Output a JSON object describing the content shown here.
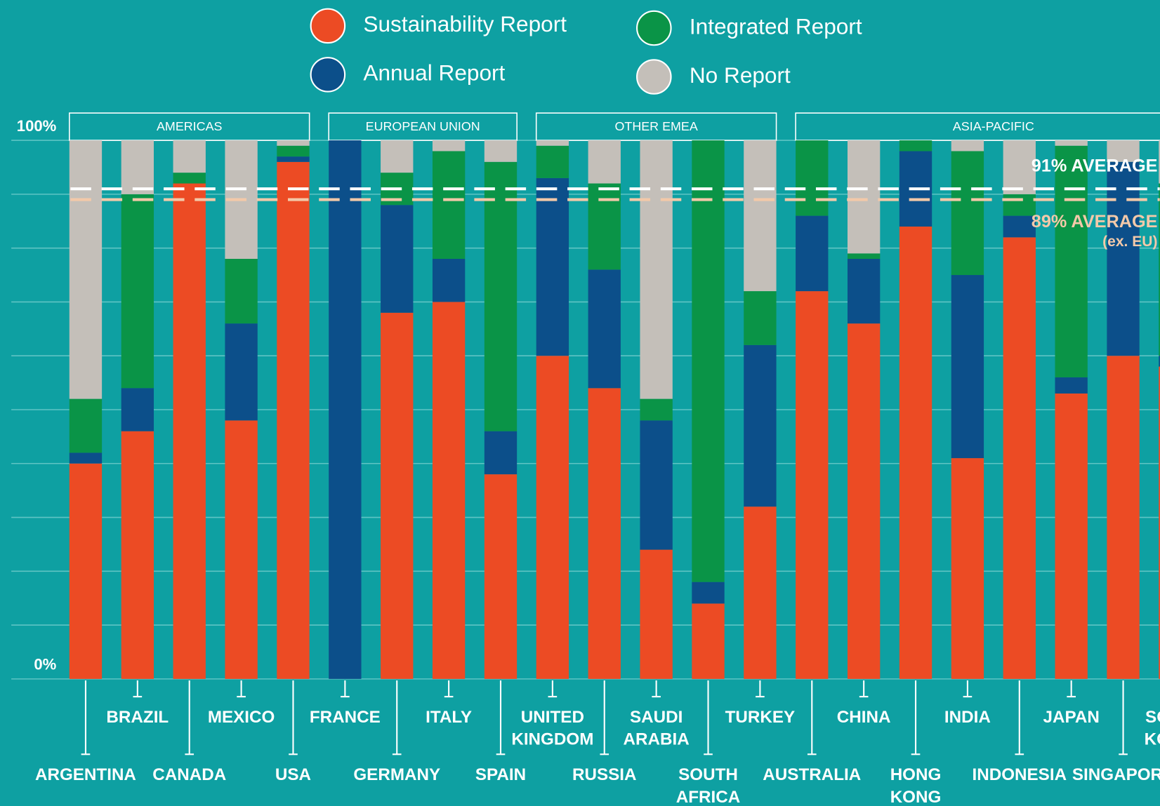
{
  "chart_data": {
    "type": "stacked_bar",
    "categories": [
      [
        "ARGENTINA"
      ],
      [
        "BRAZIL"
      ],
      [
        "CANADA"
      ],
      [
        "MEXICO"
      ],
      [
        "USA"
      ],
      [
        "FRANCE"
      ],
      [
        "GERMANY"
      ],
      [
        "ITALY"
      ],
      [
        "SPAIN"
      ],
      [
        "UNITED",
        "KINGDOM"
      ],
      [
        "RUSSIA"
      ],
      [
        "SAUDI",
        "ARABIA"
      ],
      [
        "SOUTH",
        "AFRICA"
      ],
      [
        "TURKEY"
      ],
      [
        "AUSTRALIA"
      ],
      [
        "CHINA"
      ],
      [
        "HONG",
        "KONG"
      ],
      [
        "INDIA"
      ],
      [
        "INDONESIA"
      ],
      [
        "JAPAN"
      ],
      [
        "SINGAPORE"
      ],
      [
        "SOUTH",
        "KOREA"
      ]
    ],
    "groups": [
      "AMERICAS",
      "EUROPEAN UNION",
      "OTHER EMEA",
      "ASIA-PACIFIC"
    ],
    "series": [
      {
        "name": "Sustainability Report",
        "color": "#ec4b24",
        "values": [
          40,
          46,
          92,
          48,
          96,
          0,
          68,
          70,
          38,
          60,
          54,
          24,
          14,
          32,
          72,
          66,
          84,
          41,
          82,
          53,
          60,
          58
        ]
      },
      {
        "name": "Annual Report",
        "color": "#0c4f8a",
        "values": [
          2,
          8,
          0,
          18,
          1,
          100,
          20,
          8,
          8,
          33,
          22,
          24,
          4,
          30,
          14,
          12,
          14,
          34,
          4,
          3,
          36,
          2
        ]
      },
      {
        "name": "Integrated Report",
        "color": "#0a9447",
        "values": [
          10,
          36,
          2,
          12,
          2,
          0,
          6,
          20,
          50,
          6,
          16,
          4,
          82,
          10,
          14,
          1,
          2,
          23,
          4,
          43,
          0,
          32
        ]
      },
      {
        "name": "No Report",
        "color": "#c4bfb9",
        "values": [
          48,
          10,
          6,
          22,
          1,
          0,
          6,
          2,
          4,
          1,
          8,
          48,
          0,
          28,
          0,
          21,
          0,
          2,
          10,
          1,
          4,
          8
        ]
      }
    ],
    "ylim": [
      0,
      100
    ],
    "yticks": [
      {
        "value": 0,
        "label": "0%"
      },
      {
        "value": 100,
        "label": "100%"
      }
    ],
    "ygrid": [
      10,
      20,
      30,
      40,
      50,
      60,
      70,
      80,
      90
    ],
    "reference_lines": [
      {
        "value": 91,
        "label": [
          "91% AVERAGE"
        ],
        "color": "#ffffff"
      },
      {
        "value": 89,
        "label": [
          "89% AVERAGE",
          "(ex. EU)"
        ],
        "color": "#f3c9a9"
      }
    ]
  }
}
